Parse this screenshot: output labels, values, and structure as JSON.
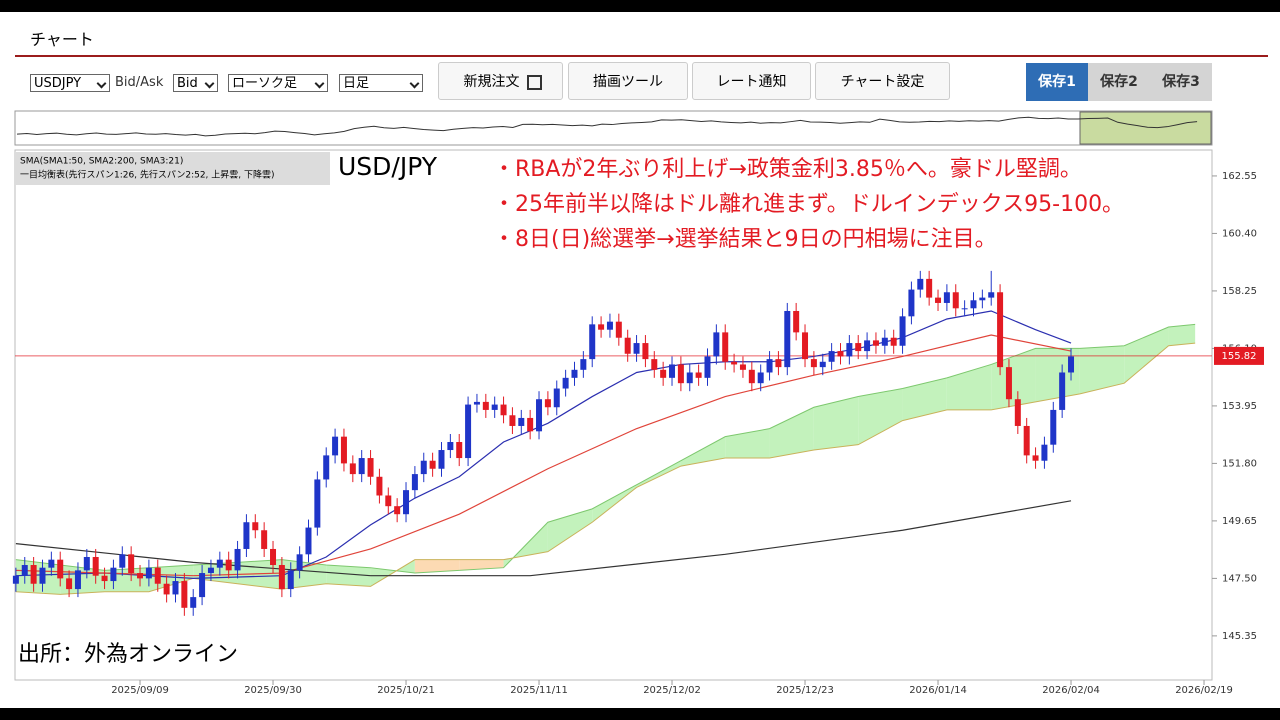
{
  "ui": {
    "title": "チャート",
    "symbol": "USDJPY",
    "bid_ask_label": "Bid/Ask",
    "bid": "Bid",
    "candle_type": "ローソク足",
    "period": "日足",
    "buttons": [
      "新規注文",
      "描画ツール",
      "レート通知",
      "チャート設定"
    ],
    "save_tabs": [
      "保存1",
      "保存2",
      "保存3"
    ]
  },
  "chart_data": {
    "type": "candlestick",
    "title": "USD/JPY",
    "indicator_legend": [
      "SMA(SMA1:50, SMA2:200, SMA3:21)",
      "一目均衡表(先行スパン1:26, 先行スパン2:52, 上昇雲, 下降雲)"
    ],
    "annotations": [
      "・RBAが2年ぶり利上げ→政策金利3.85％へ。豪ドル堅調。",
      "・25年前半以降はドル離れ進まず。ドルインデックス95-100。",
      "・8日(日)総選挙→選挙結果と9日の円相場に注目。"
    ],
    "source": "出所：外為オンライン",
    "xlim": [
      -0.1,
      134.9
    ],
    "xticks": [
      {
        "value": 14,
        "label": "2025/09/09"
      },
      {
        "value": 29,
        "label": "2025/09/30"
      },
      {
        "value": 44,
        "label": "2025/10/21"
      },
      {
        "value": 59,
        "label": "2025/11/11"
      },
      {
        "value": 74,
        "label": "2025/12/02"
      },
      {
        "value": 89,
        "label": "2025/12/23"
      },
      {
        "value": 104,
        "label": "2026/01/14"
      },
      {
        "value": 119,
        "label": "2026/02/04"
      },
      {
        "value": 134,
        "label": "2026/02/19"
      }
    ],
    "ylim": [
      143.7,
      163.52
    ],
    "yticks": [
      162.55,
      {
        "value": 160.4,
        "label": "160.40"
      },
      158.25,
      {
        "value": 156.1,
        "label": "156.10"
      },
      153.95,
      {
        "value": 151.8,
        "label": "151.80"
      },
      149.65,
      {
        "value": 147.5,
        "label": "147.50"
      },
      145.35
    ],
    "up_color": "#1f35c8",
    "down_color": "#e31b23",
    "open": [
      147.3,
      147.6,
      148.0,
      147.3,
      147.9,
      148.2,
      147.5,
      147.1,
      147.8,
      148.3,
      147.6,
      147.4,
      147.9,
      148.4,
      147.7,
      147.5,
      147.9,
      147.3,
      146.9,
      147.4,
      146.4,
      146.8,
      147.7,
      147.9,
      148.2,
      147.8,
      148.6,
      149.6,
      149.3,
      148.6,
      148.0,
      147.1,
      147.8,
      148.4,
      149.4,
      151.2,
      152.1,
      152.8,
      151.8,
      151.4,
      152.0,
      151.3,
      150.6,
      150.2,
      149.9,
      150.8,
      151.4,
      151.9,
      151.6,
      152.3,
      152.6,
      152.0,
      154.0,
      154.1,
      153.8,
      154.0,
      153.6,
      153.2,
      153.5,
      153.0,
      154.2,
      153.9,
      154.6,
      155.0,
      155.3,
      155.7,
      157.0,
      156.8,
      157.1,
      156.5,
      155.9,
      156.3,
      155.7,
      155.3,
      155.0,
      155.5,
      154.8,
      155.2,
      155.0,
      155.8,
      156.7,
      155.6,
      155.5,
      155.3,
      154.8,
      155.2,
      155.7,
      155.4,
      157.5,
      156.7,
      155.7,
      155.4,
      155.6,
      156.0,
      155.8,
      156.3,
      156.0,
      156.4,
      156.2,
      156.5,
      156.2,
      157.3,
      158.3,
      158.7,
      158.0,
      157.8,
      158.2,
      157.6,
      157.6,
      157.9,
      158.0,
      158.2,
      155.4,
      154.2,
      153.2,
      152.1,
      151.9,
      152.5,
      153.8,
      155.2
    ],
    "high": [
      147.9,
      148.3,
      148.3,
      148.2,
      148.5,
      148.5,
      147.8,
      148.1,
      148.6,
      148.6,
      147.9,
      148.2,
      148.7,
      148.7,
      148.0,
      148.2,
      148.2,
      147.6,
      147.7,
      147.7,
      147.1,
      148.0,
      148.2,
      148.5,
      148.5,
      148.9,
      149.9,
      149.9,
      149.6,
      148.9,
      148.3,
      148.1,
      148.7,
      149.7,
      151.5,
      152.4,
      153.1,
      153.1,
      152.1,
      152.3,
      152.3,
      151.6,
      150.9,
      150.5,
      151.1,
      151.7,
      152.2,
      152.2,
      152.6,
      152.9,
      152.9,
      154.3,
      154.4,
      154.4,
      154.3,
      154.3,
      153.9,
      153.8,
      153.8,
      154.5,
      154.5,
      154.9,
      155.3,
      155.6,
      156.0,
      157.3,
      157.3,
      157.4,
      157.4,
      156.8,
      156.6,
      156.6,
      156.0,
      155.6,
      155.8,
      155.8,
      155.5,
      155.5,
      156.1,
      157.0,
      157.0,
      155.9,
      155.8,
      155.6,
      155.5,
      156.0,
      156.0,
      157.8,
      157.8,
      157.0,
      156.0,
      155.9,
      156.3,
      156.3,
      156.6,
      156.6,
      156.7,
      156.7,
      156.8,
      156.8,
      157.6,
      158.6,
      159.0,
      159.0,
      158.3,
      158.5,
      158.5,
      157.9,
      158.2,
      158.3,
      159.0,
      158.5,
      155.7,
      154.5,
      153.5,
      152.4,
      152.8,
      154.1,
      155.5,
      156.1
    ],
    "low": [
      147.0,
      147.3,
      147.0,
      147.0,
      147.6,
      147.2,
      146.8,
      146.8,
      147.5,
      147.3,
      147.1,
      147.1,
      147.6,
      147.4,
      147.2,
      147.2,
      147.0,
      146.6,
      146.6,
      146.1,
      146.1,
      146.5,
      147.4,
      147.6,
      147.5,
      147.5,
      148.3,
      149.0,
      148.3,
      147.7,
      146.8,
      146.8,
      147.5,
      148.1,
      149.1,
      150.9,
      151.8,
      151.5,
      151.1,
      151.1,
      151.0,
      150.3,
      149.9,
      149.6,
      149.6,
      150.5,
      151.1,
      151.3,
      151.3,
      152.0,
      151.7,
      151.7,
      153.7,
      153.5,
      153.5,
      153.3,
      152.9,
      152.9,
      152.7,
      152.7,
      153.6,
      153.6,
      154.3,
      154.7,
      155.0,
      155.4,
      156.5,
      156.5,
      156.2,
      155.6,
      155.6,
      155.4,
      155.0,
      154.7,
      154.7,
      154.5,
      154.5,
      154.7,
      154.7,
      155.5,
      155.3,
      155.2,
      155.0,
      154.5,
      154.5,
      154.9,
      155.1,
      155.1,
      156.4,
      155.4,
      155.1,
      155.1,
      155.3,
      155.5,
      155.5,
      155.7,
      155.7,
      155.9,
      155.9,
      155.9,
      155.9,
      157.0,
      158.0,
      157.7,
      157.5,
      157.5,
      157.3,
      157.3,
      157.3,
      157.6,
      157.7,
      155.1,
      153.9,
      152.9,
      151.8,
      151.6,
      151.6,
      152.2,
      153.5,
      154.9
    ],
    "close": [
      147.6,
      148.0,
      147.3,
      147.9,
      148.2,
      147.5,
      147.1,
      147.8,
      148.3,
      147.6,
      147.4,
      147.9,
      148.4,
      147.7,
      147.5,
      147.9,
      147.3,
      146.9,
      147.4,
      146.4,
      146.8,
      147.7,
      147.9,
      148.2,
      147.8,
      148.6,
      149.6,
      149.3,
      148.6,
      148.0,
      147.1,
      147.8,
      148.4,
      149.4,
      151.2,
      152.1,
      152.8,
      151.8,
      151.4,
      152.0,
      151.3,
      150.6,
      150.2,
      149.9,
      150.8,
      151.4,
      151.9,
      151.6,
      152.3,
      152.6,
      152.0,
      154.0,
      154.1,
      153.8,
      154.0,
      153.6,
      153.2,
      153.5,
      153.0,
      154.2,
      153.9,
      154.6,
      155.0,
      155.3,
      155.7,
      157.0,
      156.8,
      157.1,
      156.5,
      155.9,
      156.3,
      155.7,
      155.3,
      155.0,
      155.5,
      154.8,
      155.2,
      155.0,
      155.8,
      156.7,
      155.6,
      155.5,
      155.3,
      154.8,
      155.2,
      155.7,
      155.4,
      157.5,
      156.7,
      155.7,
      155.4,
      155.6,
      156.0,
      155.8,
      156.3,
      156.0,
      156.4,
      156.2,
      156.5,
      156.2,
      157.3,
      158.3,
      158.7,
      158.0,
      157.8,
      158.2,
      157.6,
      157.6,
      157.9,
      158.0,
      158.2,
      155.4,
      154.2,
      153.2,
      152.1,
      151.9,
      152.5,
      153.8,
      155.2,
      155.8
    ],
    "sma": [
      {
        "color": "#2b2fb0",
        "x": [
          0,
          10,
          20,
          30,
          35,
          40,
          45,
          50,
          55,
          60,
          65,
          70,
          75,
          80,
          85,
          90,
          95,
          100,
          105,
          110,
          115,
          119
        ],
        "values": [
          147.6,
          147.7,
          147.5,
          147.6,
          148.3,
          149.5,
          150.5,
          151.3,
          152.6,
          153.3,
          154.3,
          155.2,
          155.5,
          155.6,
          155.6,
          155.8,
          156.1,
          156.5,
          157.2,
          157.5,
          156.8,
          156.3
        ]
      },
      {
        "color": "#e0443a",
        "x": [
          0,
          20,
          30,
          40,
          50,
          60,
          70,
          80,
          90,
          100,
          110,
          119
        ],
        "values": [
          147.8,
          147.6,
          147.7,
          148.6,
          149.9,
          151.6,
          153.1,
          154.3,
          155.1,
          155.8,
          156.6,
          156.0
        ]
      },
      {
        "color": "#333333",
        "x": [
          0,
          20,
          40,
          58,
          80,
          100,
          119
        ],
        "values": [
          148.8,
          148.1,
          147.6,
          147.6,
          148.4,
          149.3,
          150.4
        ]
      }
    ],
    "cloud": {
      "up_color": "#b8f0b0",
      "down_color": "#fcd3a6",
      "span1_color": "#7dc86e",
      "span2_color": "#c9b25a",
      "x": [
        0,
        5,
        10,
        15,
        20,
        25,
        30,
        35,
        40,
        45,
        50,
        55,
        60,
        65,
        70,
        75,
        80,
        85,
        90,
        95,
        100,
        105,
        110,
        115,
        120,
        125,
        130,
        133
      ],
      "span1": [
        148.2,
        148.0,
        147.8,
        147.9,
        148.0,
        148.1,
        148.2,
        148.0,
        147.9,
        147.7,
        147.8,
        147.9,
        149.6,
        150.1,
        151.0,
        151.9,
        152.8,
        153.1,
        153.9,
        154.3,
        154.6,
        155.0,
        155.5,
        156.1,
        156.1,
        156.2,
        156.9,
        157.0
      ],
      "span2": [
        147.0,
        146.9,
        147.0,
        147.0,
        147.5,
        147.3,
        147.1,
        147.3,
        147.2,
        148.2,
        148.2,
        148.2,
        148.5,
        149.6,
        150.9,
        151.7,
        152.0,
        152.0,
        152.3,
        152.5,
        153.4,
        153.8,
        153.8,
        154.1,
        154.4,
        154.8,
        156.2,
        156.3
      ]
    },
    "last_price": 155.82,
    "last_price_color": "#e31b23"
  }
}
